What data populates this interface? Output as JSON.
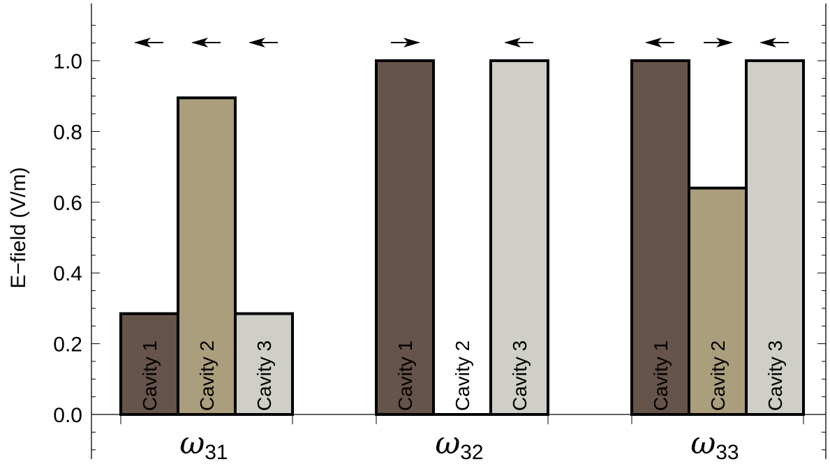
{
  "chart_data": {
    "type": "bar",
    "ylabel": "E−field (V/m)",
    "ylim": [
      -0.12,
      1.16
    ],
    "yticks": [
      "0.0",
      "0.2",
      "0.4",
      "0.6",
      "0.8",
      "1.0"
    ],
    "groups": [
      {
        "label_base": "ω",
        "label_sub": "31",
        "bars": [
          {
            "name": "Cavity 1",
            "value": 0.285,
            "color": "#66544a",
            "arrow": "left"
          },
          {
            "name": "Cavity 2",
            "value": 0.895,
            "color": "#ab9e7c",
            "arrow": "left"
          },
          {
            "name": "Cavity 3",
            "value": 0.285,
            "color": "#cfcfc8",
            "arrow": "left"
          }
        ]
      },
      {
        "label_base": "ω",
        "label_sub": "32",
        "bars": [
          {
            "name": "Cavity 1",
            "value": 1.0,
            "color": "#66544a",
            "arrow": "right"
          },
          {
            "name": "Cavity 2",
            "value": 0.0,
            "color": "#ab9e7c",
            "arrow": "none"
          },
          {
            "name": "Cavity 3",
            "value": 1.0,
            "color": "#cfcfc8",
            "arrow": "left"
          }
        ]
      },
      {
        "label_base": "ω",
        "label_sub": "33",
        "bars": [
          {
            "name": "Cavity 1",
            "value": 1.0,
            "color": "#66544a",
            "arrow": "left"
          },
          {
            "name": "Cavity 2",
            "value": 0.64,
            "color": "#ab9e7c",
            "arrow": "right"
          },
          {
            "name": "Cavity 3",
            "value": 1.0,
            "color": "#cfcfc8",
            "arrow": "left"
          }
        ]
      }
    ],
    "grid": false,
    "legend": "none"
  }
}
